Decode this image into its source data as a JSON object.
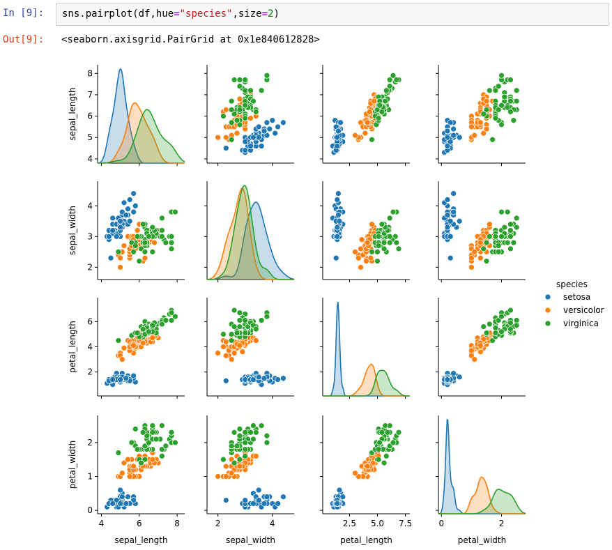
{
  "notebook": {
    "in_prompt": "In [9]:",
    "code_parts": [
      "sns.pairplot(df,hue",
      "=",
      "\"species\"",
      ",size",
      "=",
      "2",
      ")"
    ],
    "out_prompt": "Out[9]:",
    "output_text": "<seaborn.axisgrid.PairGrid at 0x1e840612828>"
  },
  "chart_data": {
    "type": "scatter",
    "kind": "pairplot",
    "variables": [
      "sepal_length",
      "sepal_width",
      "petal_length",
      "petal_width"
    ],
    "ranges": {
      "sepal_length": [
        3.8,
        8.4
      ],
      "sepal_width": [
        1.6,
        4.8
      ],
      "petal_length": [
        0.1,
        7.9
      ],
      "petal_width": [
        -0.1,
        2.8
      ]
    },
    "ticks": {
      "sepal_length": [
        4,
        5,
        6,
        7,
        8
      ],
      "sepal_width": [
        2,
        3,
        4
      ],
      "petal_length": [
        2,
        4,
        6
      ],
      "petal_width": [
        0,
        1,
        2
      ]
    },
    "x_ticks": {
      "sepal_length": [
        4,
        6,
        8
      ],
      "sepal_width": [
        2,
        4
      ],
      "petal_length": [
        2.5,
        5.0,
        7.5
      ],
      "petal_width": [
        0,
        2
      ]
    },
    "legend": {
      "title": "species",
      "placement": "right"
    },
    "series": [
      {
        "name": "setosa",
        "color": "#1f77b4",
        "sepal_length": [
          5.1,
          4.9,
          4.7,
          4.6,
          5.0,
          5.4,
          4.6,
          5.0,
          4.4,
          4.9,
          5.4,
          4.8,
          4.8,
          4.3,
          5.8,
          5.7,
          5.4,
          5.1,
          5.7,
          5.1,
          5.4,
          5.1,
          4.6,
          5.1,
          4.8,
          5.0,
          5.0,
          5.2,
          5.2,
          4.7,
          4.8,
          5.4,
          5.2,
          5.5,
          4.9,
          5.0,
          5.5,
          4.9,
          4.4,
          5.1,
          5.0,
          4.5,
          4.4,
          5.0,
          5.1,
          4.8,
          5.1,
          4.6,
          5.3,
          5.0
        ],
        "sepal_width": [
          3.5,
          3.0,
          3.2,
          3.1,
          3.6,
          3.9,
          3.4,
          3.4,
          2.9,
          3.1,
          3.7,
          3.4,
          3.0,
          3.0,
          4.0,
          4.4,
          3.9,
          3.5,
          3.8,
          3.8,
          3.4,
          3.7,
          3.6,
          3.3,
          3.4,
          3.0,
          3.4,
          3.5,
          3.4,
          3.2,
          3.1,
          3.4,
          4.1,
          4.2,
          3.1,
          3.2,
          3.5,
          3.6,
          3.0,
          3.4,
          3.5,
          2.3,
          3.2,
          3.5,
          3.8,
          3.0,
          3.8,
          3.2,
          3.7,
          3.3
        ],
        "petal_length": [
          1.4,
          1.4,
          1.3,
          1.5,
          1.4,
          1.7,
          1.4,
          1.5,
          1.4,
          1.5,
          1.5,
          1.6,
          1.4,
          1.1,
          1.2,
          1.5,
          1.3,
          1.4,
          1.7,
          1.5,
          1.7,
          1.5,
          1.0,
          1.7,
          1.9,
          1.6,
          1.6,
          1.5,
          1.4,
          1.6,
          1.6,
          1.5,
          1.5,
          1.4,
          1.5,
          1.2,
          1.3,
          1.4,
          1.3,
          1.5,
          1.3,
          1.3,
          1.3,
          1.6,
          1.9,
          1.4,
          1.6,
          1.4,
          1.5,
          1.4
        ],
        "petal_width": [
          0.2,
          0.2,
          0.2,
          0.2,
          0.2,
          0.4,
          0.3,
          0.2,
          0.2,
          0.1,
          0.2,
          0.2,
          0.1,
          0.1,
          0.2,
          0.4,
          0.4,
          0.3,
          0.3,
          0.3,
          0.2,
          0.4,
          0.2,
          0.5,
          0.2,
          0.2,
          0.4,
          0.2,
          0.2,
          0.2,
          0.2,
          0.4,
          0.1,
          0.2,
          0.2,
          0.2,
          0.2,
          0.1,
          0.2,
          0.2,
          0.3,
          0.3,
          0.2,
          0.6,
          0.4,
          0.3,
          0.2,
          0.2,
          0.2,
          0.2
        ]
      },
      {
        "name": "versicolor",
        "color": "#ff7f0e",
        "sepal_length": [
          7.0,
          6.4,
          6.9,
          5.5,
          6.5,
          5.7,
          6.3,
          4.9,
          6.6,
          5.2,
          5.0,
          5.9,
          6.0,
          6.1,
          5.6,
          6.7,
          5.6,
          5.8,
          6.2,
          5.6,
          5.9,
          6.1,
          6.3,
          6.1,
          6.4,
          6.6,
          6.8,
          6.7,
          6.0,
          5.7,
          5.5,
          5.5,
          5.8,
          6.0,
          5.4,
          6.0,
          6.7,
          6.3,
          5.6,
          5.5,
          5.5,
          6.1,
          5.8,
          5.0,
          5.6,
          5.7,
          5.7,
          6.2,
          5.1,
          5.7
        ],
        "sepal_width": [
          3.2,
          3.2,
          3.1,
          2.3,
          2.8,
          2.8,
          3.3,
          2.4,
          2.9,
          2.7,
          2.0,
          3.0,
          2.2,
          2.9,
          2.9,
          3.1,
          3.0,
          2.7,
          2.2,
          2.5,
          3.2,
          2.8,
          2.5,
          2.8,
          2.9,
          3.0,
          2.8,
          3.0,
          2.9,
          2.6,
          2.4,
          2.4,
          2.7,
          2.7,
          3.0,
          3.4,
          3.1,
          2.3,
          3.0,
          2.5,
          2.6,
          3.0,
          2.6,
          2.3,
          2.7,
          3.0,
          2.9,
          2.9,
          2.5,
          2.8
        ],
        "petal_length": [
          4.7,
          4.5,
          4.9,
          4.0,
          4.6,
          4.5,
          4.7,
          3.3,
          4.6,
          3.9,
          3.5,
          4.2,
          4.0,
          4.7,
          3.6,
          4.4,
          4.5,
          4.1,
          4.5,
          3.9,
          4.8,
          4.0,
          4.9,
          4.7,
          4.3,
          4.4,
          4.8,
          5.0,
          4.5,
          3.5,
          3.8,
          3.7,
          3.9,
          5.1,
          4.5,
          4.5,
          4.7,
          4.4,
          4.1,
          4.0,
          4.4,
          4.6,
          4.0,
          3.3,
          4.2,
          4.2,
          4.2,
          4.3,
          3.0,
          4.1
        ],
        "petal_width": [
          1.4,
          1.5,
          1.5,
          1.3,
          1.5,
          1.3,
          1.6,
          1.0,
          1.3,
          1.4,
          1.0,
          1.5,
          1.0,
          1.4,
          1.3,
          1.4,
          1.5,
          1.0,
          1.5,
          1.1,
          1.8,
          1.3,
          1.5,
          1.2,
          1.3,
          1.4,
          1.4,
          1.7,
          1.5,
          1.0,
          1.1,
          1.0,
          1.2,
          1.6,
          1.5,
          1.6,
          1.5,
          1.3,
          1.3,
          1.3,
          1.2,
          1.4,
          1.2,
          1.0,
          1.3,
          1.2,
          1.3,
          1.3,
          1.1,
          1.3
        ]
      },
      {
        "name": "virginica",
        "color": "#2ca02c",
        "sepal_length": [
          6.3,
          5.8,
          7.1,
          6.3,
          6.5,
          7.6,
          4.9,
          7.3,
          6.7,
          7.2,
          6.5,
          6.4,
          6.8,
          5.7,
          5.8,
          6.4,
          6.5,
          7.7,
          7.7,
          6.0,
          6.9,
          5.6,
          7.7,
          6.3,
          6.7,
          7.2,
          6.2,
          6.1,
          6.4,
          7.2,
          7.4,
          7.9,
          6.4,
          6.3,
          6.1,
          7.7,
          6.3,
          6.4,
          6.0,
          6.9,
          6.7,
          6.9,
          5.8,
          6.8,
          6.7,
          6.7,
          6.3,
          6.5,
          6.2,
          5.9
        ],
        "sepal_width": [
          3.3,
          2.7,
          3.0,
          2.9,
          3.0,
          3.0,
          2.5,
          2.9,
          2.5,
          3.6,
          3.2,
          2.7,
          3.0,
          2.5,
          2.8,
          3.2,
          3.0,
          3.8,
          2.6,
          2.2,
          3.2,
          2.8,
          2.8,
          2.7,
          3.3,
          3.2,
          2.8,
          3.0,
          2.8,
          3.0,
          2.8,
          3.8,
          2.8,
          2.8,
          2.6,
          3.0,
          3.4,
          3.1,
          3.0,
          3.1,
          3.1,
          3.1,
          2.7,
          3.2,
          3.3,
          3.0,
          2.5,
          3.0,
          3.4,
          3.0
        ],
        "petal_length": [
          6.0,
          5.1,
          5.9,
          5.6,
          5.8,
          6.6,
          4.5,
          6.3,
          5.8,
          6.1,
          5.1,
          5.3,
          5.5,
          5.0,
          5.1,
          5.3,
          5.5,
          6.7,
          6.9,
          5.0,
          5.7,
          4.9,
          6.7,
          4.9,
          5.7,
          6.0,
          4.8,
          4.9,
          5.6,
          5.8,
          6.1,
          6.4,
          5.6,
          5.1,
          5.6,
          6.1,
          5.6,
          5.5,
          4.8,
          5.4,
          5.6,
          5.1,
          5.1,
          5.9,
          5.7,
          5.2,
          5.0,
          5.2,
          5.4,
          5.1
        ],
        "petal_width": [
          2.5,
          1.9,
          2.1,
          1.8,
          2.2,
          2.1,
          1.7,
          1.8,
          1.8,
          2.5,
          2.0,
          1.9,
          2.1,
          2.0,
          2.4,
          2.3,
          1.8,
          2.2,
          2.3,
          1.5,
          2.3,
          2.0,
          2.0,
          1.8,
          2.1,
          1.8,
          1.8,
          1.8,
          2.1,
          1.6,
          1.9,
          2.0,
          2.2,
          1.5,
          1.4,
          2.3,
          2.4,
          1.8,
          1.8,
          2.1,
          2.4,
          2.3,
          1.9,
          2.3,
          2.5,
          2.3,
          1.9,
          2.0,
          2.3,
          1.8
        ]
      }
    ]
  }
}
